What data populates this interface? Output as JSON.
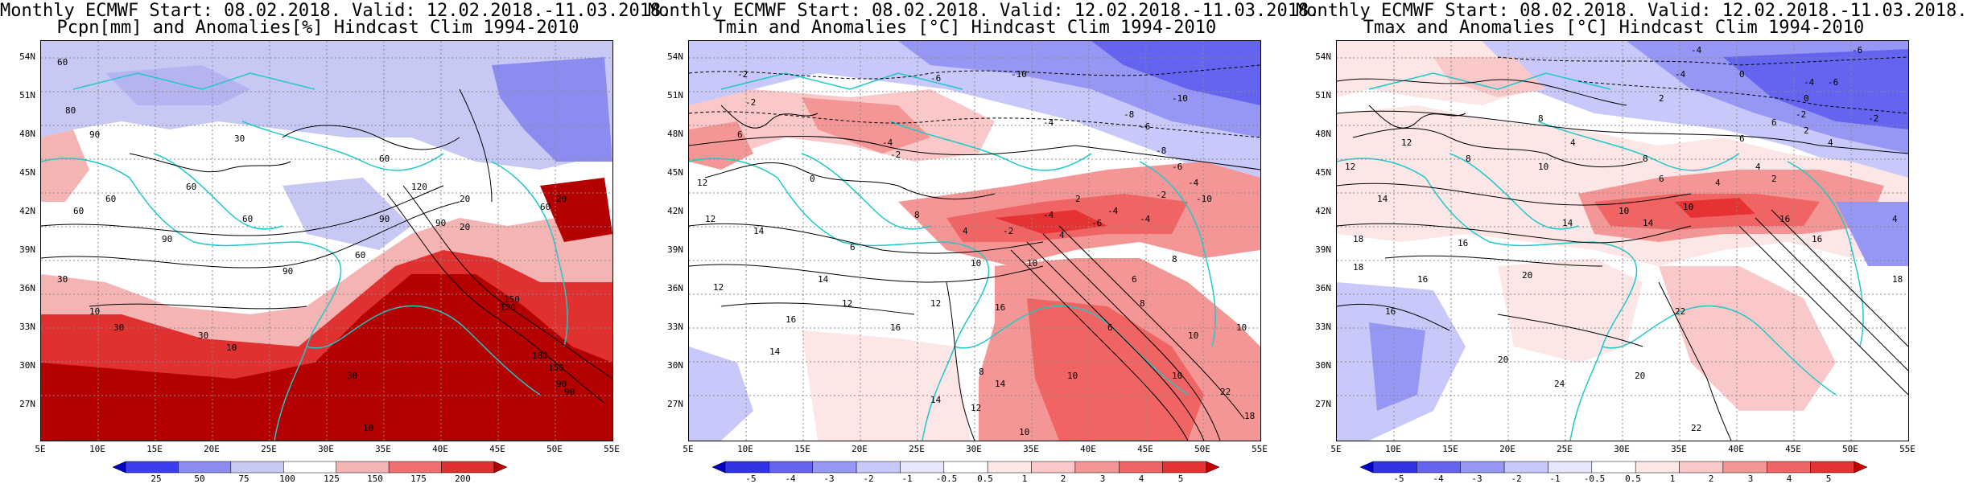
{
  "panels": [
    {
      "title_line1": "Monthly ECMWF Start: 08.02.2018. Valid: 12.02.2018.-11.03.2018.",
      "title_line2": "Pcpn[mm] and Anomalies[%] Hindcast Clim 1994-2010",
      "colorbar_ticks": [
        "25",
        "50",
        "75",
        "100",
        "125",
        "150",
        "175",
        "200"
      ],
      "colorbar_colors": [
        "#0000c8",
        "#3c3cf0",
        "#8c8cf0",
        "#c8c8f5",
        "#ffffff",
        "#f5b4b4",
        "#f07070",
        "#e03030",
        "#b40000"
      ],
      "contour_labels": [
        "60",
        "80",
        "90",
        "30",
        "60",
        "60",
        "60",
        "120",
        "90",
        "20",
        "90",
        "60",
        "20",
        "60",
        "60",
        "90",
        "30",
        "60",
        "90",
        "150",
        "180",
        "120",
        "30",
        "10",
        "10",
        "30",
        "150",
        "90",
        "90",
        "20",
        "30",
        "10"
      ]
    },
    {
      "title_line1": "Monthly ECMWF Start: 08.02.2018. Valid: 12.02.2018.-11.03.2018.",
      "title_line2": "Tmin and Anomalies [°C] Hindcast Clim 1994-2010",
      "colorbar_ticks": [
        "-5",
        "-4",
        "-3",
        "-2",
        "-1",
        "-0.5",
        "0.5",
        "1",
        "2",
        "3",
        "4",
        "5"
      ],
      "colorbar_colors": [
        "#0000c8",
        "#3232e6",
        "#6464f0",
        "#9696f5",
        "#c8c8fa",
        "#e6e6fc",
        "#ffffff",
        "#fce6e6",
        "#fac8c8",
        "#f59696",
        "#f06464",
        "#e63232",
        "#c80000"
      ],
      "contour_labels": [
        "-2",
        "-6",
        "-10",
        "-10",
        "-2",
        "-4",
        "-6",
        "-8",
        "-8",
        "-6",
        "-4",
        "-4",
        "-2",
        "0",
        "-4",
        "-4",
        "-2",
        "2",
        "6",
        "4",
        "4",
        "8",
        "12",
        "-2",
        "-4",
        "-10",
        "-6",
        "14",
        "6",
        "12",
        "8",
        "10",
        "10",
        "12",
        "14",
        "16",
        "12",
        "6",
        "8",
        "10",
        "14",
        "12",
        "10",
        "16",
        "8",
        "10",
        "6",
        "22",
        "10",
        "14",
        "12",
        "18",
        "10",
        "16",
        "14"
      ]
    },
    {
      "title_line1": "Monthly ECMWF Start: 08.02.2018. Valid: 12.02.2018.-11.03.2018.",
      "title_line2": "Tmax and Anomalies [°C] Hindcast Clim 1994-2010",
      "colorbar_ticks": [
        "-5",
        "-4",
        "-3",
        "-2",
        "-1",
        "-0.5",
        "0.5",
        "1",
        "2",
        "3",
        "4",
        "5"
      ],
      "colorbar_colors": [
        "#0000c8",
        "#3232e6",
        "#6464f0",
        "#9696f5",
        "#c8c8fa",
        "#e6e6fc",
        "#ffffff",
        "#fce6e6",
        "#fac8c8",
        "#f59696",
        "#f06464",
        "#e63232",
        "#c80000"
      ],
      "contour_labels": [
        "-4",
        "-6",
        "-4",
        "0",
        "2",
        "-4",
        "-6",
        "-2",
        "0",
        "4",
        "6",
        "8",
        "-2",
        "2",
        "4",
        "12",
        "8",
        "10",
        "6",
        "4",
        "2",
        "8",
        "4",
        "6",
        "10",
        "14",
        "16",
        "12",
        "10",
        "14",
        "16",
        "18",
        "14",
        "16",
        "20",
        "18",
        "16",
        "20",
        "22",
        "18",
        "16",
        "20",
        "24",
        "22",
        "4"
      ]
    }
  ],
  "lat_labels": [
    "54N",
    "51N",
    "48N",
    "45N",
    "42N",
    "39N",
    "36N",
    "33N",
    "30N",
    "27N"
  ],
  "lon_labels": [
    "5E",
    "10E",
    "15E",
    "20E",
    "25E",
    "30E",
    "35E",
    "40E",
    "45E",
    "50E",
    "55E"
  ]
}
